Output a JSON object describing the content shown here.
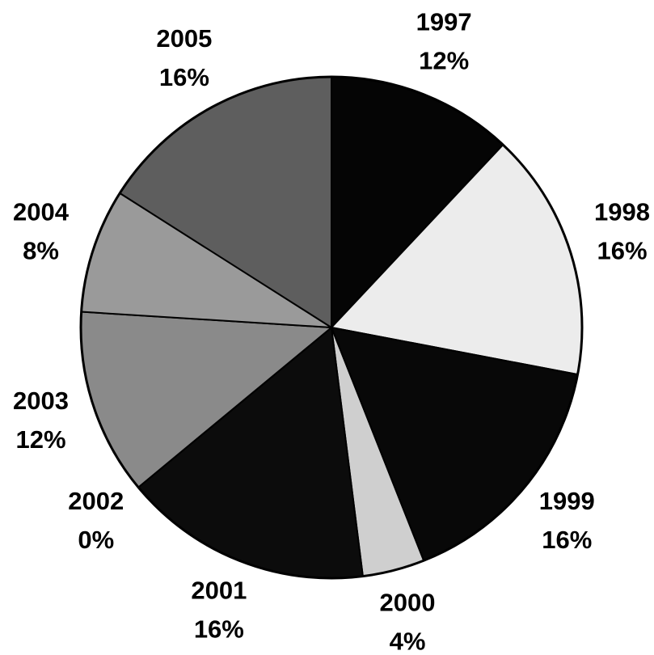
{
  "chart_data": {
    "type": "pie",
    "categories": [
      "1997",
      "1998",
      "1999",
      "2000",
      "2001",
      "2002",
      "2003",
      "2004",
      "2005"
    ],
    "values": [
      12,
      16,
      16,
      4,
      16,
      0,
      12,
      8,
      16
    ],
    "value_labels": [
      "12%",
      "16%",
      "16%",
      "4%",
      "16%",
      "0%",
      "12%",
      "8%",
      "16%"
    ],
    "colors": [
      "#050505",
      "#ececec",
      "#080808",
      "#cfcfcf",
      "#0c0c0c",
      "#202020",
      "#8a8a8a",
      "#9a9a9a",
      "#5e5e5e"
    ]
  }
}
